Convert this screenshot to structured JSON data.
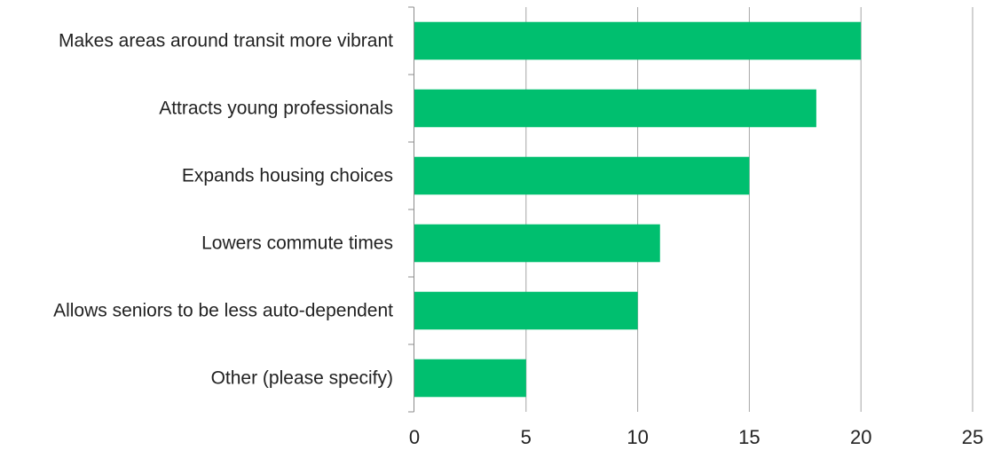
{
  "chart_data": {
    "type": "bar",
    "orientation": "horizontal",
    "title": "",
    "xlabel": "",
    "ylabel": "",
    "categories": [
      "Makes areas around transit more vibrant",
      "Attracts young professionals",
      "Expands housing choices",
      "Lowers commute times",
      "Allows seniors to be less auto-dependent",
      "Other (please specify)"
    ],
    "values": [
      20,
      18,
      15,
      11,
      10,
      5
    ],
    "xlim": [
      0,
      25
    ],
    "xticks": [
      0,
      5,
      10,
      15,
      20,
      25
    ],
    "grid": "vertical",
    "legend": "none",
    "bar_color": "#00BF6F"
  }
}
